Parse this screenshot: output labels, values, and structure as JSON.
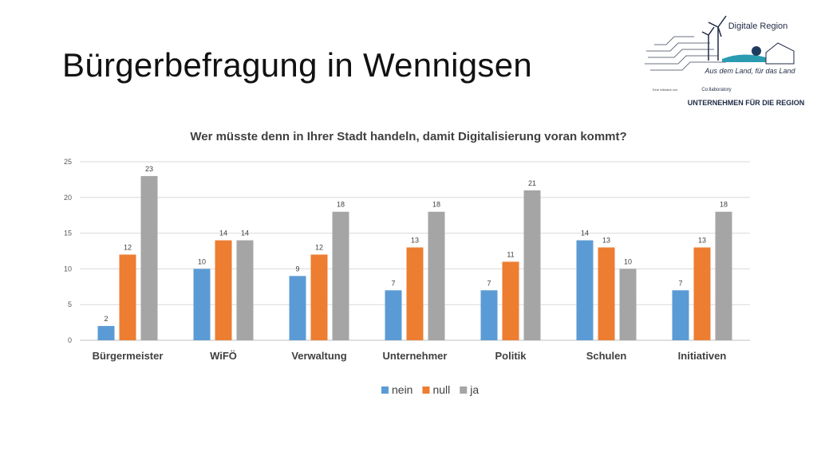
{
  "slide": {
    "title": "Bürgerbefragung in Wennigsen"
  },
  "logo": {
    "title": "Digitale Region",
    "slogan": "Aus dem Land, für das Land",
    "initiative": "Eine Initiative von",
    "partner1": "Co:llaboratory",
    "partner2": "UNTERNEHMEN FÜR DIE REGION"
  },
  "chart_data": {
    "type": "bar",
    "title": "Wer müsste denn in Ihrer Stadt handeln, damit Digitalisierung voran kommt?",
    "categories": [
      "Bürgermeister",
      "WiFÖ",
      "Verwaltung",
      "Unternehmer",
      "Politik",
      "Schulen",
      "Initiativen"
    ],
    "series": [
      {
        "name": "nein",
        "color": "#5B9BD5",
        "values": [
          2,
          10,
          9,
          7,
          7,
          14,
          7
        ]
      },
      {
        "name": "null",
        "color": "#ED7D31",
        "values": [
          12,
          14,
          12,
          13,
          11,
          13,
          13
        ]
      },
      {
        "name": "ja",
        "color": "#A5A5A5",
        "values": [
          23,
          14,
          18,
          18,
          21,
          10,
          18
        ]
      }
    ],
    "ylim": [
      0,
      25
    ],
    "yticks": [
      0,
      5,
      10,
      15,
      20,
      25
    ],
    "grid": true,
    "legend": "bottom",
    "data_labels": true
  }
}
